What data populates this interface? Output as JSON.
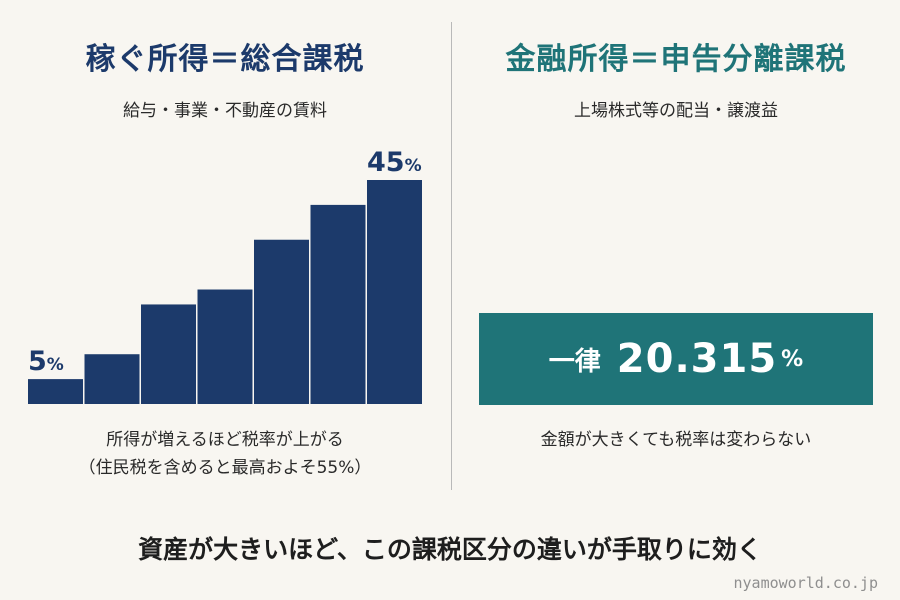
{
  "left": {
    "title": "稼ぐ所得＝総合課税",
    "subtitle": "給与・事業・不動産の賃料",
    "note_line1": "所得が増えるほど税率が上がる",
    "note_line2": "（住民税を含めると最高およそ55%）"
  },
  "right": {
    "title": "金融所得＝申告分離課税",
    "subtitle": "上場株式等の配当・譲渡益",
    "flat_label": "一律",
    "flat_value": "20.315",
    "flat_unit": "%",
    "note": "金額が大きくても税率は変わらない"
  },
  "conclusion": "資産が大きいほど、この課税区分の違いが手取りに効く",
  "watermark": "nyamoworld.co.jp",
  "colors": {
    "navy": "#1c3a6b",
    "teal": "#1f7478",
    "background": "#f8f6f1"
  },
  "chart_data": {
    "type": "bar",
    "title": "",
    "xlabel": "",
    "ylabel": "",
    "ylim": [
      0,
      45
    ],
    "grid": false,
    "values": [
      5,
      10,
      20,
      23,
      33,
      40,
      45
    ],
    "data_labels": [
      {
        "index": 0,
        "number": "5",
        "unit": "%"
      },
      {
        "index": 6,
        "number": "45",
        "unit": "%"
      }
    ]
  }
}
